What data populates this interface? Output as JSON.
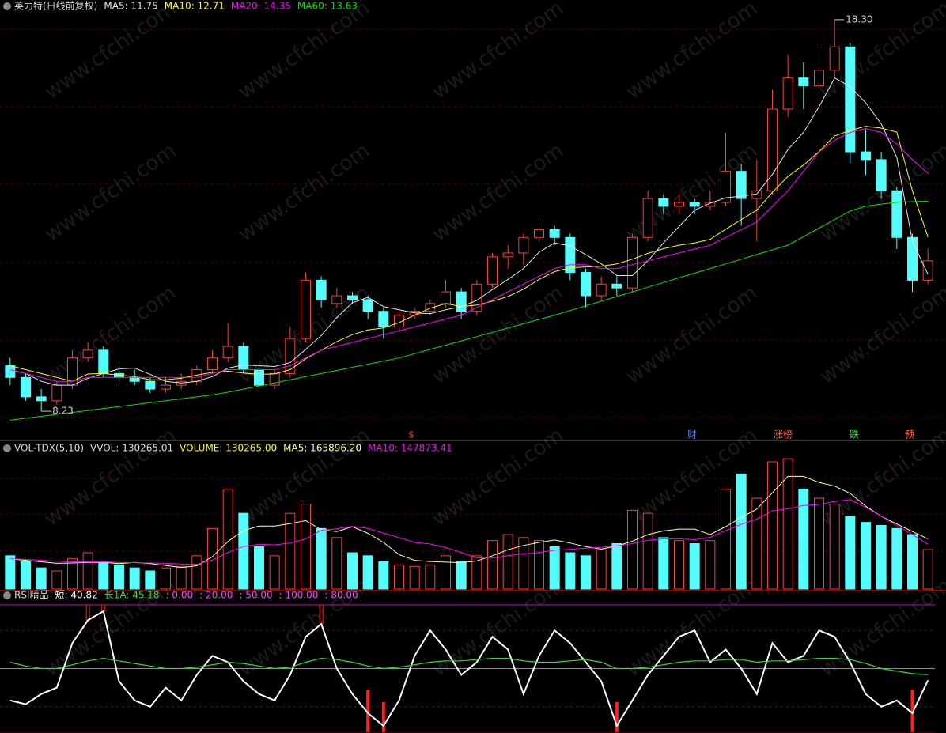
{
  "chart_data": [
    {
      "type": "candlestick",
      "title": "英力特(日线前复权)",
      "ylim": [
        7.52,
        18.44
      ],
      "up_color": "#ff3c3c",
      "down_color": "#54fcfc",
      "open": [
        9.4,
        9.1,
        8.6,
        8.5,
        8.9,
        9.6,
        9.8,
        9.2,
        9.1,
        9.0,
        8.8,
        8.9,
        9.0,
        9.3,
        9.6,
        9.9,
        9.3,
        8.9,
        9.2,
        10.1,
        11.6,
        11.0,
        11.2,
        11.1,
        10.8,
        10.4,
        10.7,
        10.8,
        11.0,
        11.3,
        10.8,
        11.5,
        12.2,
        12.3,
        12.7,
        12.9,
        12.7,
        11.8,
        11.2,
        11.5,
        11.4,
        12.7,
        13.7,
        13.5,
        13.6,
        13.5,
        13.6,
        14.4,
        13.7,
        13.9,
        16.0,
        16.8,
        16.6,
        17.0,
        17.6,
        14.9,
        14.7,
        13.9,
        12.7,
        11.6
      ],
      "high": [
        9.6,
        9.2,
        8.8,
        9.0,
        9.8,
        10.0,
        9.9,
        9.4,
        9.3,
        9.1,
        9.1,
        9.2,
        9.4,
        9.8,
        10.5,
        10.0,
        9.4,
        9.3,
        10.4,
        11.8,
        11.7,
        11.4,
        11.3,
        11.2,
        10.9,
        10.8,
        10.9,
        11.1,
        11.6,
        11.4,
        11.6,
        12.3,
        12.5,
        12.8,
        13.2,
        13.0,
        12.8,
        11.9,
        11.7,
        11.7,
        12.8,
        13.9,
        13.8,
        13.8,
        13.7,
        13.9,
        15.4,
        14.6,
        14.7,
        16.5,
        17.4,
        17.2,
        17.6,
        18.3,
        17.7,
        15.5,
        14.9,
        14.0,
        12.8,
        12.4
      ],
      "low": [
        8.9,
        8.5,
        8.23,
        8.4,
        8.8,
        9.5,
        9.1,
        9.0,
        8.9,
        8.7,
        8.7,
        8.8,
        8.9,
        9.2,
        9.5,
        9.2,
        8.8,
        8.8,
        9.1,
        10.0,
        10.9,
        10.9,
        11.0,
        10.6,
        10.1,
        10.3,
        10.6,
        10.7,
        10.9,
        10.6,
        10.7,
        11.4,
        11.9,
        12.0,
        12.6,
        12.5,
        11.6,
        10.9,
        11.1,
        11.2,
        11.3,
        12.6,
        13.3,
        13.3,
        13.3,
        13.4,
        13.5,
        13.0,
        12.6,
        13.8,
        15.8,
        16.0,
        16.4,
        16.8,
        14.6,
        14.3,
        13.7,
        12.4,
        11.3,
        11.5
      ],
      "close": [
        9.1,
        8.6,
        8.5,
        8.9,
        9.6,
        9.8,
        9.2,
        9.1,
        9.0,
        8.8,
        8.9,
        9.0,
        9.3,
        9.6,
        9.9,
        9.3,
        8.9,
        9.2,
        10.1,
        11.6,
        11.1,
        11.2,
        11.1,
        10.8,
        10.4,
        10.7,
        10.8,
        11.0,
        11.3,
        10.8,
        11.5,
        12.2,
        12.3,
        12.7,
        12.9,
        12.7,
        11.8,
        11.2,
        11.5,
        11.4,
        12.7,
        13.7,
        13.5,
        13.6,
        13.5,
        13.6,
        14.4,
        13.7,
        13.9,
        16.0,
        16.8,
        16.6,
        17.0,
        17.6,
        14.9,
        14.7,
        13.9,
        12.7,
        11.6,
        12.1
      ],
      "series": [
        {
          "name": "MA5",
          "legend": "MA5: 11.75",
          "color": "#e6e6e6",
          "values": [
            9.3,
            9.2,
            9.0,
            8.9,
            8.9,
            9.08,
            9.2,
            9.32,
            9.34,
            9.18,
            9.0,
            8.96,
            9.0,
            9.12,
            9.34,
            9.42,
            9.4,
            9.38,
            9.48,
            9.82,
            10.18,
            10.64,
            11.02,
            11.16,
            10.92,
            10.84,
            10.76,
            10.74,
            10.84,
            10.92,
            11.08,
            11.36,
            11.62,
            11.9,
            12.32,
            12.56,
            12.48,
            12.26,
            12.02,
            11.72,
            11.72,
            12.1,
            12.56,
            12.98,
            13.4,
            13.58,
            13.72,
            13.76,
            13.82,
            14.32,
            14.96,
            15.4,
            16.06,
            16.8,
            16.58,
            16.16,
            15.62,
            14.76,
            12.6,
            11.75
          ]
        },
        {
          "name": "MA10",
          "legend": "MA10: 12.71",
          "color": "#ffff00",
          "values": [
            9.4,
            9.3,
            9.2,
            9.1,
            9.0,
            9.19,
            9.2,
            9.16,
            9.12,
            9.04,
            9.04,
            9.08,
            9.16,
            9.23,
            9.26,
            9.21,
            9.18,
            9.19,
            9.3,
            9.58,
            9.8,
            10.02,
            10.2,
            10.32,
            10.37,
            10.51,
            10.7,
            10.88,
            11.0,
            10.92,
            10.96,
            11.06,
            11.18,
            11.37,
            11.62,
            11.82,
            11.92,
            11.94,
            11.96,
            12.02,
            12.14,
            12.29,
            12.41,
            12.5,
            12.56,
            12.65,
            12.91,
            13.16,
            13.4,
            13.86,
            14.27,
            14.56,
            14.91,
            15.31,
            15.45,
            15.56,
            15.51,
            15.41,
            13.9,
            12.71
          ]
        },
        {
          "name": "MA20",
          "legend": "MA20: 14.35",
          "color": "#ff00ff",
          "values": [
            9.3,
            9.2,
            9.1,
            9.0,
            9.0,
            9.1,
            9.1,
            9.1,
            9.1,
            9.1,
            9.1,
            9.1,
            9.1,
            9.2,
            9.3,
            9.3,
            9.3,
            9.3,
            9.4,
            9.6,
            9.8,
            9.9,
            10.0,
            10.1,
            10.2,
            10.3,
            10.4,
            10.5,
            10.6,
            10.7,
            10.9,
            11.1,
            11.3,
            11.5,
            11.7,
            11.9,
            12.0,
            12.0,
            11.9,
            11.9,
            12.0,
            12.1,
            12.2,
            12.3,
            12.4,
            12.5,
            12.7,
            12.9,
            13.1,
            13.5,
            13.9,
            14.4,
            14.9,
            15.2,
            15.4,
            15.5,
            15.4,
            15.1,
            14.7,
            14.35
          ]
        },
        {
          "name": "MA60",
          "legend": "MA60: 13.63",
          "color": "#00e600",
          "values": [
            8.0,
            8.05,
            8.1,
            8.15,
            8.2,
            8.25,
            8.3,
            8.35,
            8.4,
            8.45,
            8.5,
            8.55,
            8.6,
            8.65,
            8.72,
            8.8,
            8.88,
            8.96,
            9.04,
            9.12,
            9.2,
            9.28,
            9.36,
            9.44,
            9.52,
            9.6,
            9.71,
            9.82,
            9.93,
            10.04,
            10.15,
            10.26,
            10.37,
            10.48,
            10.59,
            10.7,
            10.82,
            10.94,
            11.06,
            11.18,
            11.3,
            11.42,
            11.54,
            11.66,
            11.78,
            11.9,
            12.02,
            12.14,
            12.26,
            12.38,
            12.5,
            12.72,
            12.94,
            13.16,
            13.38,
            13.5,
            13.56,
            13.6,
            13.62,
            13.63
          ]
        }
      ],
      "annotations": [
        {
          "label": "18.30",
          "value": 18.3
        },
        {
          "label": "8.23",
          "value": 8.23
        }
      ],
      "events": [
        {
          "label": "$",
          "color": "#ff3030"
        },
        {
          "label": "财",
          "color": "#4a8cff"
        },
        {
          "label": "涨榜",
          "color": "#ff6a40"
        },
        {
          "label": "跌",
          "color": "#30e030"
        },
        {
          "label": "预",
          "color": "#ff6a40"
        }
      ],
      "watermark": "www.cfchi.com"
    },
    {
      "type": "bar",
      "title": "VOL-TDX(5,10)",
      "header": "VVOL: 130265.01",
      "ylim": [
        0,
        480000
      ],
      "series": [
        {
          "name": "VOLUME",
          "legend": "VOLUME: 130265.00",
          "color": "#ffff00",
          "values": [
            110000,
            90000,
            70000,
            60000,
            100000,
            120000,
            90000,
            80000,
            70000,
            60000,
            70000,
            75000,
            110000,
            200000,
            330000,
            250000,
            140000,
            110000,
            250000,
            280000,
            200000,
            170000,
            120000,
            110000,
            90000,
            80000,
            75000,
            80000,
            110000,
            90000,
            110000,
            160000,
            180000,
            170000,
            160000,
            140000,
            120000,
            110000,
            130000,
            150000,
            260000,
            250000,
            170000,
            160000,
            150000,
            160000,
            330000,
            380000,
            300000,
            420000,
            430000,
            330000,
            300000,
            280000,
            240000,
            220000,
            210000,
            200000,
            180000,
            130265
          ]
        },
        {
          "name": "MA5",
          "legend": "MA5: 165896.20",
          "color": "#ffffa0",
          "values": [
            100000,
            95000,
            90000,
            85000,
            86000,
            88000,
            88000,
            84000,
            88000,
            84000,
            78000,
            71000,
            77000,
            107000,
            157000,
            193000,
            208000,
            208000,
            216000,
            226000,
            196000,
            190000,
            206000,
            184000,
            154000,
            114000,
            95000,
            91000,
            89000,
            87000,
            93000,
            110000,
            130000,
            144000,
            154000,
            162000,
            152000,
            140000,
            132000,
            142000,
            158000,
            180000,
            192000,
            198000,
            198000,
            180000,
            206000,
            236000,
            264000,
            318000,
            372000,
            372000,
            352000,
            340000,
            316000,
            274000,
            240000,
            215000,
            190000,
            165896.2
          ]
        },
        {
          "name": "MA10",
          "legend": "MA10: 147873.41",
          "color": "#ff00ff",
          "values": [
            100000,
            98000,
            95000,
            92000,
            90000,
            90000,
            90000,
            88000,
            87000,
            86000,
            85000,
            83000,
            82000,
            96000,
            121000,
            140000,
            148000,
            146000,
            152000,
            166000,
            194000,
            199000,
            207000,
            200000,
            185000,
            170000,
            154000,
            149000,
            137000,
            121000,
            103000,
            102000,
            110000,
            116000,
            121000,
            128000,
            131000,
            135000,
            138000,
            143000,
            150000,
            161000,
            166000,
            166000,
            163000,
            171000,
            193000,
            214000,
            231000,
            258000,
            265000,
            276000,
            279000,
            289000,
            295000,
            270000,
            240000,
            210000,
            180000,
            147873.41
          ]
        }
      ]
    },
    {
      "type": "line",
      "title": "RSI精品",
      "ylim": [
        0,
        100
      ],
      "series": [
        {
          "name": "短",
          "legend": "短: 40.82",
          "color": "#ffffff",
          "values": [
            25,
            22,
            30,
            35,
            70,
            88,
            95,
            40,
            25,
            20,
            35,
            25,
            45,
            60,
            55,
            40,
            30,
            25,
            45,
            75,
            85,
            50,
            30,
            15,
            5,
            25,
            60,
            80,
            65,
            45,
            55,
            75,
            65,
            30,
            60,
            80,
            70,
            55,
            40,
            5,
            25,
            45,
            60,
            75,
            80,
            55,
            65,
            50,
            30,
            70,
            55,
            60,
            80,
            75,
            55,
            30,
            20,
            25,
            15,
            40.82
          ]
        },
        {
          "name": "长1A",
          "legend": "长1A: 45.18",
          "color": "#30e030",
          "values": [
            55,
            52,
            50,
            50,
            53,
            56,
            58,
            56,
            54,
            52,
            50,
            50,
            51,
            53,
            55,
            54,
            52,
            50,
            51,
            55,
            58,
            57,
            55,
            52,
            50,
            51,
            53,
            55,
            56,
            56,
            57,
            58,
            58,
            56,
            55,
            55,
            56,
            57,
            55,
            50,
            50,
            51,
            53,
            55,
            56,
            56,
            57,
            57,
            55,
            56,
            56,
            57,
            58,
            58,
            57,
            54,
            50,
            48,
            46,
            45.18
          ]
        }
      ],
      "levels": [
        {
          "value": 0,
          "label": ": 0.00",
          "color": "#600000"
        },
        {
          "value": 20,
          "label": ": 20.00",
          "color": "#8a0000"
        },
        {
          "value": 50,
          "label": ": 50.00",
          "color": "#30d030"
        },
        {
          "value": 100,
          "label": ": 100.00",
          "color": "#d000d0"
        },
        {
          "value": 80,
          "label": ": 80.00",
          "color": "#8a0000"
        }
      ],
      "level_color": "#ff40ff",
      "signal_color": "#ff2020"
    }
  ]
}
